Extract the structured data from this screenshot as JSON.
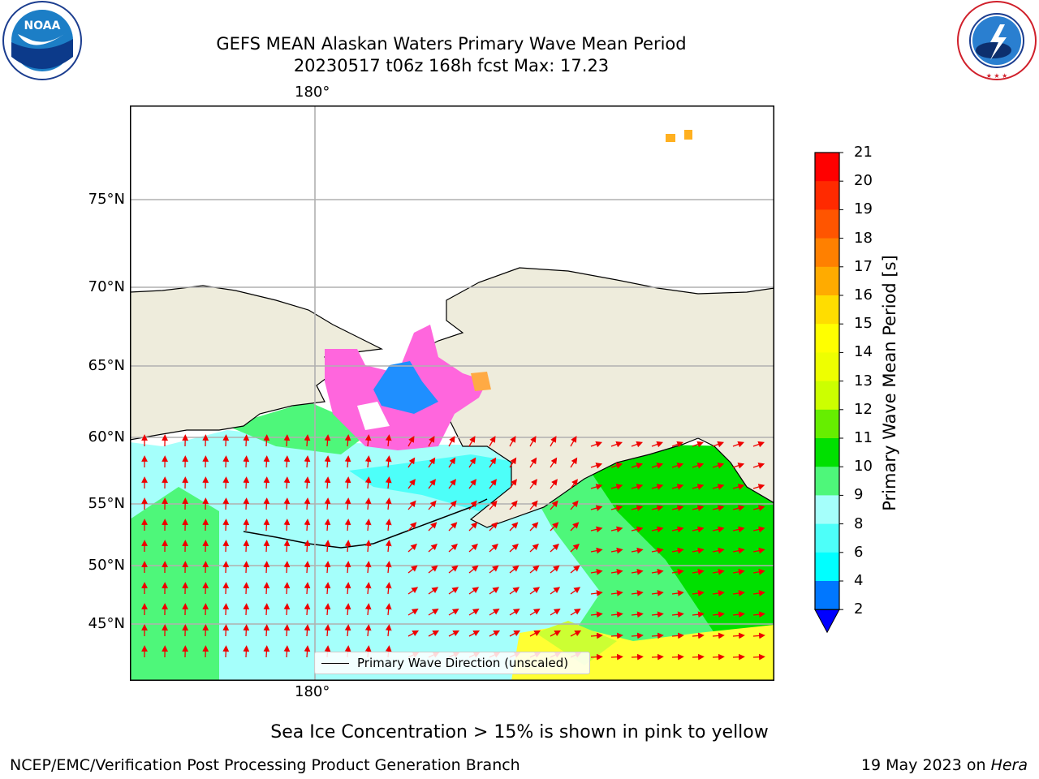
{
  "header": {
    "title_line1": "GEFS MEAN Alaskan Waters Primary Wave Mean Period",
    "title_line2": "20230517 t06z 168h fcst   Max: 17.23"
  },
  "logos": {
    "left": "NOAA",
    "left_ring_text": "NATIONAL OCEANIC AND ATMOSPHERIC ADMINISTRATION · U.S. DEPARTMENT OF COMMERCE",
    "right_ring_text": "NATIONAL WEATHER SERVICE"
  },
  "map": {
    "lon_label_top": "180°",
    "lon_label_bottom": "180°",
    "lat_labels": [
      "75°N",
      "70°N",
      "65°N",
      "60°N",
      "55°N",
      "50°N",
      "45°N"
    ],
    "legend_label": "Primary Wave Direction (unscaled)",
    "colors": {
      "land": "#eeecdc",
      "ocean_low": "#a5fffb",
      "ocean_mid": "#4ef77a",
      "ocean_high": "#00e000",
      "ice_pink": "#ff66dd",
      "arrow": "#ee0000"
    }
  },
  "colorbar": {
    "title": "Primary Wave Mean Period [s]",
    "ticks": [
      "21",
      "20",
      "19",
      "18",
      "17",
      "16",
      "15",
      "14",
      "13",
      "12",
      "11",
      "10",
      "9",
      "8",
      "6",
      "4",
      "2"
    ],
    "colors": [
      "#ff0000",
      "#ff2a00",
      "#ff5500",
      "#ff8000",
      "#ffab00",
      "#ffdd00",
      "#ffff00",
      "#eeff00",
      "#ccff00",
      "#66ee00",
      "#00e000",
      "#4ef77a",
      "#a5fffb",
      "#4dfff9",
      "#00ffff",
      "#0077ff",
      "#0000ff"
    ]
  },
  "footer": {
    "note": "Sea Ice Concentration > 15% is shown in pink to yellow",
    "left": "NCEP/EMC/Verification Post Processing Product Generation Branch",
    "right_date": "19 May 2023 on ",
    "right_machine": "Hera"
  }
}
